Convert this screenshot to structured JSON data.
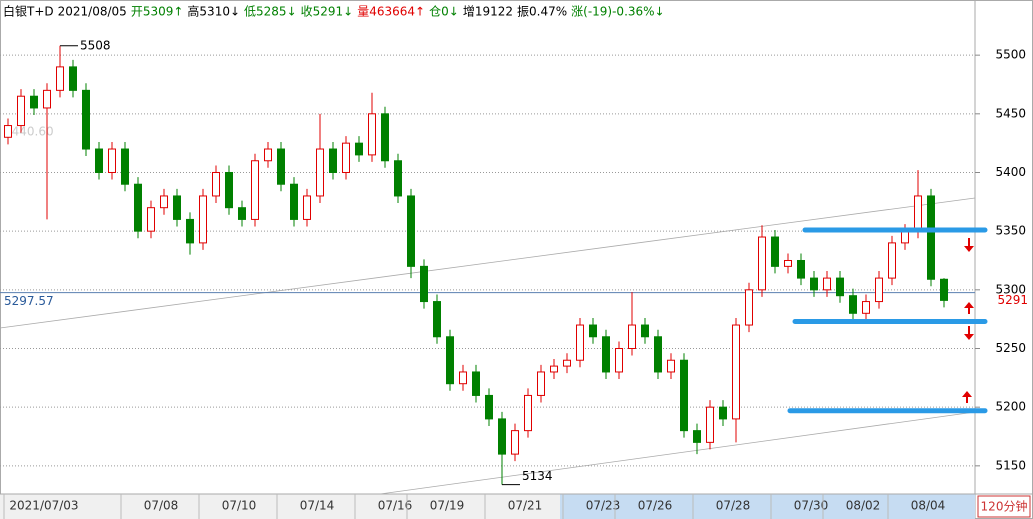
{
  "chart_data": {
    "type": "candlestick",
    "header": [
      {
        "text": "白银T+D",
        "color": "#000"
      },
      {
        "text": "2021/08/05",
        "color": "#000"
      },
      {
        "text": "开5309↑",
        "color": "#008000"
      },
      {
        "text": "高5310↓",
        "color": "#000"
      },
      {
        "text": "低5285↓",
        "color": "#008000"
      },
      {
        "text": "收5291↓",
        "color": "#008000"
      },
      {
        "text": "量463664↑",
        "color": "#e00000"
      },
      {
        "text": "仓0↓",
        "color": "#008000"
      },
      {
        "text": "增19122",
        "color": "#000"
      },
      {
        "text": "振0.47%",
        "color": "#000"
      },
      {
        "text": "涨(-19)-0.36%↓",
        "color": "#008000"
      }
    ],
    "period_label": "120分钟",
    "categories": [
      null,
      null,
      "2021/07/03",
      null,
      null,
      null,
      null,
      null,
      null,
      null,
      null,
      "07/08",
      null,
      null,
      null,
      null,
      null,
      "07/10",
      null,
      null,
      null,
      null,
      null,
      "07/14",
      null,
      null,
      null,
      null,
      null,
      "07/16",
      null,
      null,
      null,
      "07/19",
      null,
      null,
      null,
      null,
      null,
      "07/21",
      null,
      null,
      null,
      null,
      null,
      "07/23",
      null,
      null,
      null,
      "07/26",
      null,
      null,
      null,
      null,
      null,
      "07/28",
      null,
      null,
      null,
      null,
      null,
      "07/30",
      null,
      null,
      null,
      "08/02",
      null,
      null,
      null,
      null,
      "08/04",
      null,
      null
    ],
    "open": [
      5430,
      5440,
      5465,
      5455,
      5470,
      5490,
      5470,
      5420,
      5400,
      5420,
      5390,
      5350,
      5370,
      5380,
      5360,
      5340,
      5380,
      5400,
      5370,
      5360,
      5410,
      5420,
      5390,
      5360,
      5380,
      5420,
      5400,
      5425,
      5415,
      5450,
      5410,
      5380,
      5320,
      5290,
      5260,
      5220,
      5230,
      5210,
      5190,
      5160,
      5180,
      5210,
      5230,
      5235,
      5240,
      5270,
      5260,
      5230,
      5250,
      5270,
      5260,
      5230,
      5240,
      5180,
      5170,
      5200,
      5190,
      5270,
      5300,
      5345,
      5320,
      5325,
      5310,
      5300,
      5310,
      5295,
      5280,
      5290,
      5310,
      5340,
      5350,
      5380,
      5309
    ],
    "high": [
      5446,
      5471,
      5471,
      5476,
      5508,
      5496,
      5476,
      5426,
      5426,
      5426,
      5396,
      5376,
      5386,
      5386,
      5366,
      5386,
      5406,
      5406,
      5376,
      5416,
      5426,
      5426,
      5396,
      5386,
      5450,
      5426,
      5431,
      5431,
      5468,
      5456,
      5416,
      5386,
      5326,
      5296,
      5266,
      5236,
      5236,
      5216,
      5196,
      5186,
      5216,
      5236,
      5241,
      5246,
      5276,
      5276,
      5266,
      5256,
      5298,
      5276,
      5266,
      5246,
      5246,
      5186,
      5206,
      5206,
      5276,
      5306,
      5355,
      5351,
      5331,
      5331,
      5316,
      5316,
      5316,
      5301,
      5296,
      5316,
      5346,
      5356,
      5402,
      5386,
      5310
    ],
    "low": [
      5424,
      5434,
      5449,
      5360,
      5464,
      5464,
      5414,
      5394,
      5394,
      5384,
      5344,
      5344,
      5364,
      5354,
      5330,
      5334,
      5374,
      5364,
      5354,
      5354,
      5404,
      5384,
      5354,
      5354,
      5374,
      5394,
      5394,
      5409,
      5409,
      5404,
      5374,
      5310,
      5284,
      5254,
      5214,
      5214,
      5204,
      5184,
      5134,
      5154,
      5174,
      5204,
      5224,
      5229,
      5234,
      5254,
      5224,
      5224,
      5244,
      5254,
      5224,
      5224,
      5174,
      5160,
      5164,
      5184,
      5170,
      5264,
      5294,
      5314,
      5314,
      5304,
      5294,
      5294,
      5289,
      5274,
      5274,
      5284,
      5304,
      5334,
      5344,
      5303,
      5285
    ],
    "close": [
      5440,
      5465,
      5455,
      5470,
      5490,
      5470,
      5420,
      5400,
      5420,
      5390,
      5350,
      5370,
      5380,
      5360,
      5340,
      5380,
      5400,
      5370,
      5360,
      5410,
      5420,
      5390,
      5360,
      5380,
      5420,
      5400,
      5425,
      5415,
      5450,
      5410,
      5380,
      5320,
      5290,
      5260,
      5220,
      5230,
      5210,
      5190,
      5160,
      5180,
      5210,
      5230,
      5235,
      5240,
      5270,
      5260,
      5230,
      5250,
      5270,
      5260,
      5230,
      5240,
      5180,
      5170,
      5200,
      5190,
      5270,
      5300,
      5345,
      5320,
      5325,
      5310,
      5300,
      5310,
      5295,
      5280,
      5290,
      5310,
      5340,
      5350,
      5380,
      5309,
      5291
    ],
    "up_color": "#e00000",
    "down_color": "#008000",
    "ylim": [
      5126,
      5547
    ],
    "yticks": [
      5150,
      5200,
      5250,
      5300,
      5350,
      5400,
      5450,
      5500
    ],
    "grid": true,
    "high_label": 5508,
    "low_label": 5134,
    "ref_price": 5297.57,
    "last_price": 5291,
    "faint_label": "5440.60",
    "drawn_levels": [
      5351,
      5273,
      5197
    ],
    "level_color": "#2a9ae6"
  }
}
